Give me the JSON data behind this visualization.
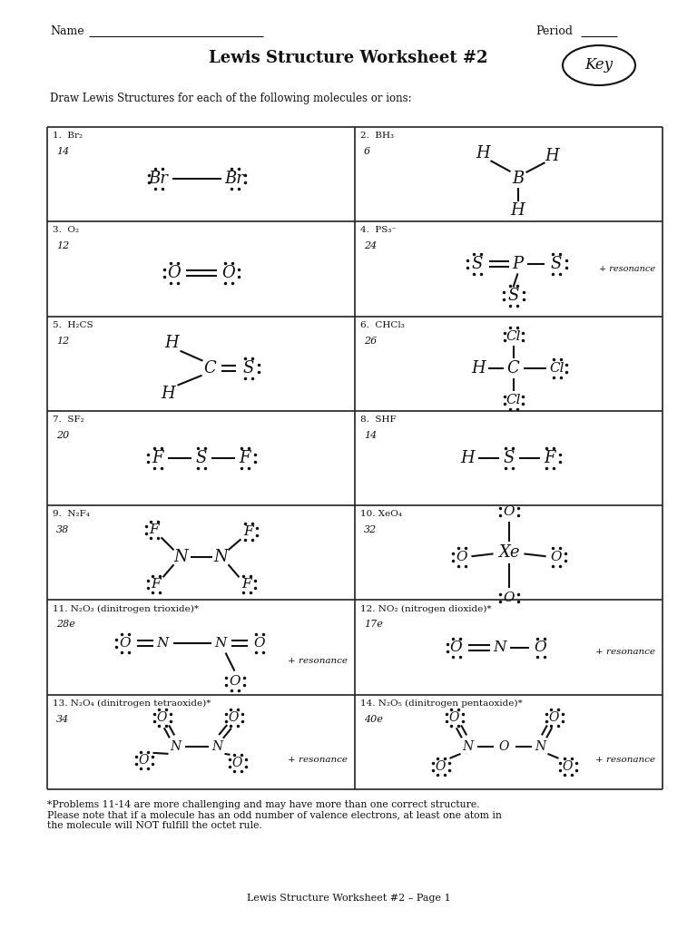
{
  "title": "Lewis Structure Worksheet #2",
  "subtitle": "Draw Lewis Structures for each of the following molecules or ions:",
  "footer": "Lewis Structure Worksheet #2 – Page 1",
  "footer_note": "*Problems 11-14 are more challenging and may have more than one correct structure.\nPlease note that if a molecule has an odd number of valence electrons, at least one atom in\nthe molecule will NOT fulfill the octet rule.",
  "bg_color": "#ffffff",
  "grid_color": "#222222",
  "text_color": "#111111"
}
